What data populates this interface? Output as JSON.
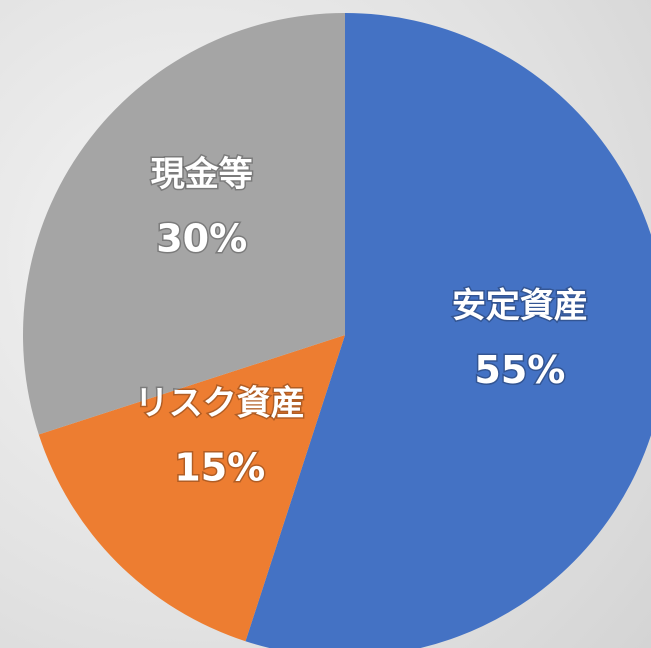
{
  "chart_data": {
    "type": "pie",
    "categories": [
      "安定資産",
      "リスク資産",
      "現金等"
    ],
    "values": [
      55,
      15,
      30
    ],
    "value_labels": [
      "55%",
      "15%",
      "30%"
    ],
    "colors": [
      "#4472c4",
      "#ed7d31",
      "#a5a5a5"
    ]
  }
}
